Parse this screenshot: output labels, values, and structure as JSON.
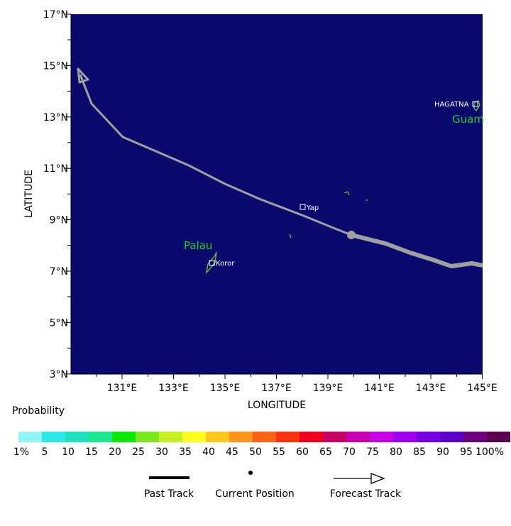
{
  "map": {
    "bg_color": "#0a0a6e",
    "land_color": "#7fd13b",
    "track_color": "#a0a0a0",
    "lon_ticks": [
      "131°E",
      "133°E",
      "135°E",
      "137°E",
      "139°E",
      "141°E",
      "143°E",
      "145°E"
    ],
    "lat_ticks": [
      "17°N",
      "15°N",
      "13°N",
      "11°N",
      "9°N",
      "7°N",
      "5°N",
      "3°N"
    ],
    "xlabel": "LONGITUDE",
    "ylabel": "LATITUDE",
    "places": {
      "hagatna": "HAGATNA",
      "guam": "Guam",
      "yap": "Yap",
      "palau": "Palau",
      "koror": "Koror"
    }
  },
  "legend": {
    "title": "Probability",
    "colors": [
      "#8ff5f5",
      "#2ce8e8",
      "#1ee0c0",
      "#19e890",
      "#0ae805",
      "#7be81e",
      "#c3f01e",
      "#ffff1e",
      "#ffc81e",
      "#ff9619",
      "#ff6414",
      "#ff320f",
      "#f0001e",
      "#c80064",
      "#c800b4",
      "#c800e6",
      "#a000f0",
      "#7800e6",
      "#5a00c8",
      "#6e007d",
      "#5a0050"
    ],
    "labels": [
      "1%",
      "5",
      "10",
      "15",
      "20",
      "25",
      "30",
      "35",
      "40",
      "45",
      "50",
      "55",
      "60",
      "65",
      "70",
      "75",
      "80",
      "85",
      "90",
      "95",
      "100%"
    ],
    "past_track": "Past Track",
    "current_position": "Current Position",
    "forecast_track": "Forecast Track"
  }
}
